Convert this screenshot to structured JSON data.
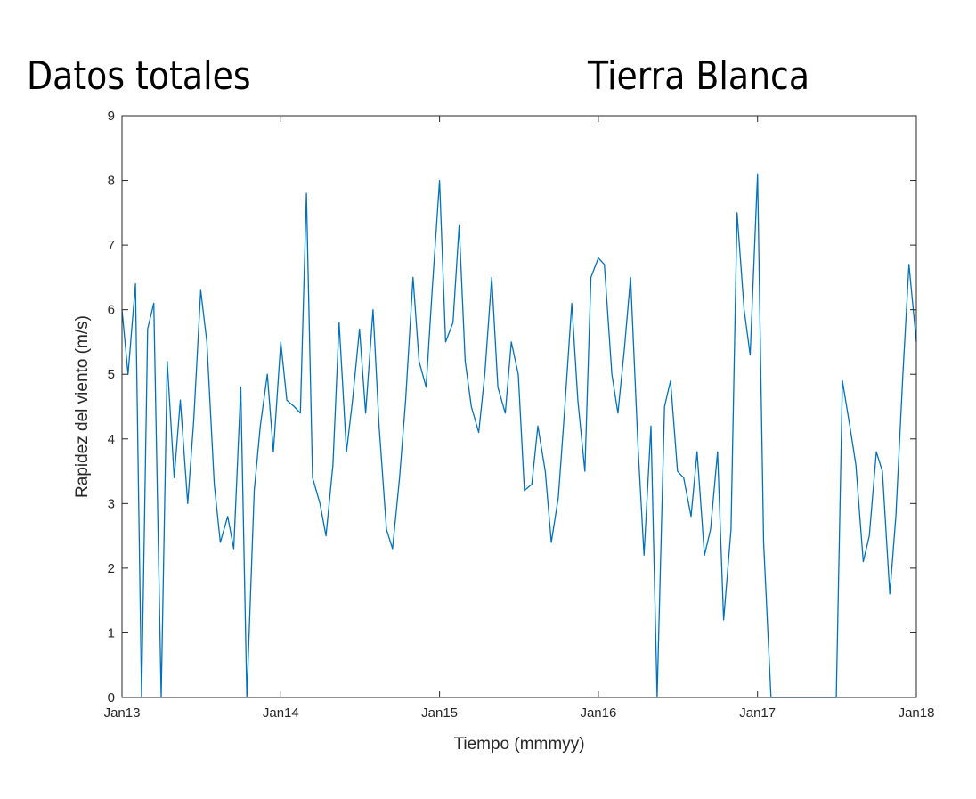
{
  "header": {
    "left_title": "Datos totales",
    "right_title": "Tierra Blanca"
  },
  "chart_data": {
    "type": "line",
    "title": "",
    "xlabel": "Tiempo (mmmyy)",
    "ylabel": "Rapidez del viento (m/s)",
    "ylim": [
      0,
      9
    ],
    "yticks": [
      0,
      1,
      2,
      3,
      4,
      5,
      6,
      7,
      8,
      9
    ],
    "xlim": [
      "2013-01-01",
      "2018-01-01"
    ],
    "xticks": [
      {
        "date": "2013-01-01",
        "label": "Jan13"
      },
      {
        "date": "2014-01-01",
        "label": "Jan14"
      },
      {
        "date": "2015-01-01",
        "label": "Jan15"
      },
      {
        "date": "2016-01-01",
        "label": "Jan16"
      },
      {
        "date": "2017-01-01",
        "label": "Jan17"
      },
      {
        "date": "2018-01-01",
        "label": "Jan18"
      }
    ],
    "grid": false,
    "line_color": "#0072BD",
    "series": [
      {
        "x": [
          "2013-01-01",
          "2013-01-15",
          "2013-02-01",
          "2013-02-15",
          "2013-03-01",
          "2013-03-15",
          "2013-04-01",
          "2013-04-15",
          "2013-05-01",
          "2013-05-15",
          "2013-06-01",
          "2013-06-15",
          "2013-07-01",
          "2013-07-15",
          "2013-08-01",
          "2013-08-15",
          "2013-09-01",
          "2013-09-15",
          "2013-10-01",
          "2013-10-15",
          "2013-11-01",
          "2013-11-15",
          "2013-12-01",
          "2013-12-15",
          "2014-01-01",
          "2014-01-15",
          "2014-02-01",
          "2014-02-15",
          "2014-03-01",
          "2014-03-15",
          "2014-04-01",
          "2014-04-15",
          "2014-05-01",
          "2014-05-15",
          "2014-06-01",
          "2014-06-15",
          "2014-07-01",
          "2014-07-15",
          "2014-08-01",
          "2014-08-15",
          "2014-09-01",
          "2014-09-15",
          "2014-10-01",
          "2014-10-15",
          "2014-11-01",
          "2014-11-15",
          "2014-12-01",
          "2014-12-15",
          "2015-01-01",
          "2015-01-15",
          "2015-02-01",
          "2015-02-15",
          "2015-03-01",
          "2015-03-15",
          "2015-04-01",
          "2015-04-15",
          "2015-05-01",
          "2015-05-15",
          "2015-06-01",
          "2015-06-15",
          "2015-07-01",
          "2015-07-15",
          "2015-08-01",
          "2015-08-15",
          "2015-09-01",
          "2015-09-15",
          "2015-10-01",
          "2015-10-15",
          "2015-11-01",
          "2015-11-15",
          "2015-12-01",
          "2015-12-15",
          "2016-01-01",
          "2016-01-15",
          "2016-02-01",
          "2016-02-15",
          "2016-03-01",
          "2016-03-15",
          "2016-04-01",
          "2016-04-15",
          "2016-05-01",
          "2016-05-15",
          "2016-06-01",
          "2016-06-15",
          "2016-07-01",
          "2016-07-15",
          "2016-08-01",
          "2016-08-15",
          "2016-09-01",
          "2016-09-15",
          "2016-10-01",
          "2016-10-15",
          "2016-11-01",
          "2016-11-15",
          "2016-12-01",
          "2016-12-15",
          "2017-01-01",
          "2017-01-15",
          "2017-02-01",
          "2017-02-15",
          "2017-03-01",
          "2017-07-01",
          "2017-07-15",
          "2017-08-01",
          "2017-08-15",
          "2017-09-01",
          "2017-09-15",
          "2017-10-01",
          "2017-10-15",
          "2017-11-01",
          "2017-11-15",
          "2017-12-01",
          "2017-12-15",
          "2018-01-01"
        ],
        "y": [
          6.0,
          5.0,
          6.4,
          0.0,
          5.7,
          6.1,
          0.0,
          5.2,
          3.4,
          4.6,
          3.0,
          4.3,
          6.3,
          5.5,
          3.3,
          2.4,
          2.8,
          2.3,
          4.8,
          0.0,
          3.2,
          4.2,
          5.0,
          3.8,
          5.5,
          4.6,
          4.5,
          4.4,
          7.8,
          3.4,
          3.0,
          2.5,
          3.6,
          5.8,
          3.8,
          4.6,
          5.7,
          4.4,
          6.0,
          4.2,
          2.6,
          2.3,
          3.4,
          4.6,
          6.5,
          5.2,
          4.8,
          6.3,
          8.0,
          5.5,
          5.8,
          7.3,
          5.2,
          4.5,
          4.1,
          5.0,
          6.5,
          4.8,
          4.4,
          5.5,
          5.0,
          3.2,
          3.3,
          4.2,
          3.5,
          2.4,
          3.1,
          4.4,
          6.1,
          4.6,
          3.5,
          6.5,
          6.8,
          6.7,
          5.0,
          4.4,
          5.4,
          6.5,
          3.9,
          2.2,
          4.2,
          0.0,
          4.5,
          4.9,
          3.5,
          3.4,
          2.8,
          3.8,
          2.2,
          2.6,
          3.8,
          1.2,
          2.6,
          7.5,
          6.0,
          5.3,
          8.1,
          2.4,
          0.0,
          0.0,
          0.0,
          0.0,
          4.9,
          4.2,
          3.6,
          2.1,
          2.5,
          3.8,
          3.5,
          1.6,
          2.8,
          5.0,
          6.7,
          5.5
        ]
      }
    ]
  }
}
